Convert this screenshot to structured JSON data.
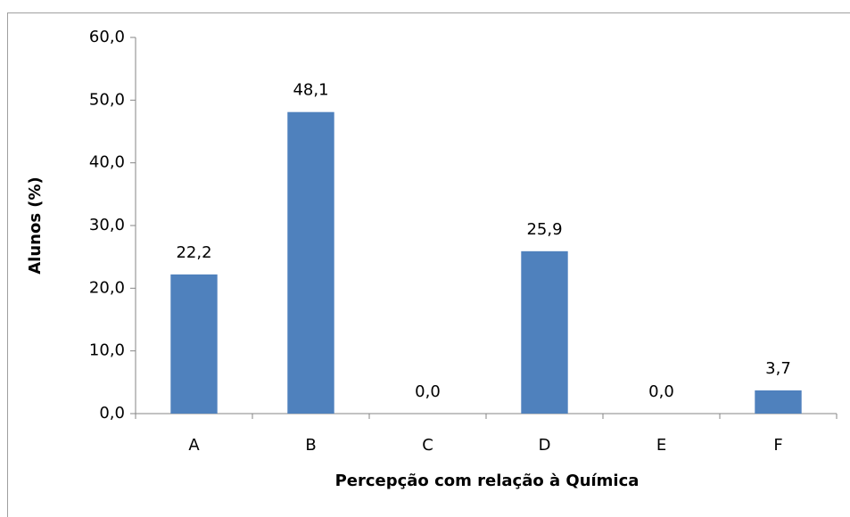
{
  "chart_data": {
    "type": "bar",
    "x_label": "Percepção com relação à Química",
    "y_label": "Alunos (%)",
    "categories": [
      "A",
      "B",
      "C",
      "D",
      "E",
      "F"
    ],
    "values": [
      22.2,
      48.1,
      0.0,
      25.9,
      0.0,
      3.7
    ],
    "value_labels": [
      "22,2",
      "48,1",
      "0,0",
      "25,9",
      "0,0",
      "3,7"
    ],
    "color": "#4f81bd",
    "ylim": [
      0,
      60
    ],
    "yticks": [
      {
        "value": 0,
        "label": "0,0"
      },
      {
        "value": 10,
        "label": "10,0"
      },
      {
        "value": 20,
        "label": "20,0"
      },
      {
        "value": 30,
        "label": "30,0"
      },
      {
        "value": 40,
        "label": "40,0"
      },
      {
        "value": 50,
        "label": "50,0"
      },
      {
        "value": 60,
        "label": "60,0"
      }
    ],
    "grid": false
  }
}
